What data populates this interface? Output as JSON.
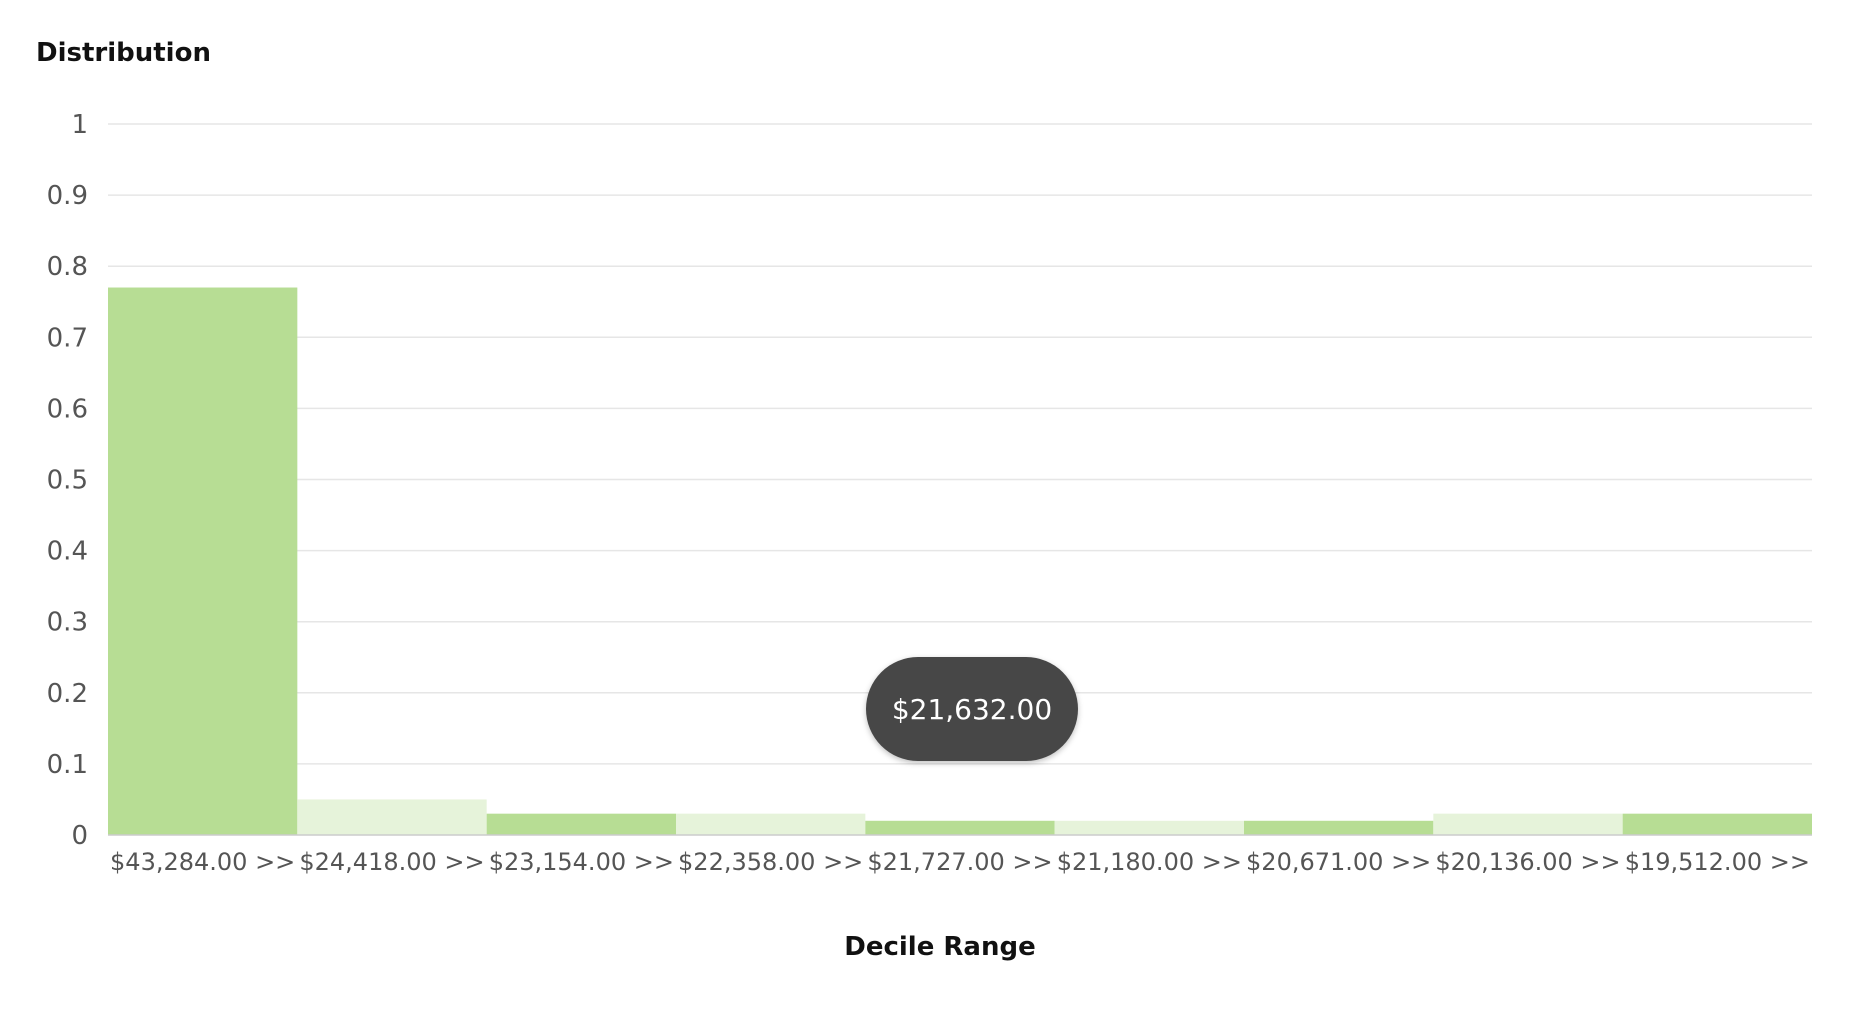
{
  "chart_data": {
    "type": "bar",
    "title": "Distribution",
    "xlabel": "Decile Range",
    "ylabel": "",
    "ylim": [
      0,
      1
    ],
    "yticks": [
      "0",
      "0.1",
      "0.2",
      "0.3",
      "0.4",
      "0.5",
      "0.6",
      "0.7",
      "0.8",
      "0.9",
      "1"
    ],
    "categories": [
      "$43,284.00 >>",
      "$24,418.00 >>",
      "$23,154.00 >>",
      "$22,358.00 >>",
      "$21,727.00 >>",
      "$21,180.00 >>",
      "$20,671.00 >>",
      "$20,136.00 >>",
      "$19,512.00 >>"
    ],
    "values": [
      0.77,
      0.05,
      0.03,
      0.03,
      0.02,
      0.02,
      0.02,
      0.03,
      0.03
    ],
    "bar_colors": [
      "#b7dd94",
      "#e6f3da",
      "#b7dd94",
      "#e6f3da",
      "#b7dd94",
      "#e6f3da",
      "#b7dd94",
      "#e6f3da",
      "#b7dd94"
    ],
    "grid": true,
    "legend": "none",
    "tooltip": "$21,632.00"
  }
}
